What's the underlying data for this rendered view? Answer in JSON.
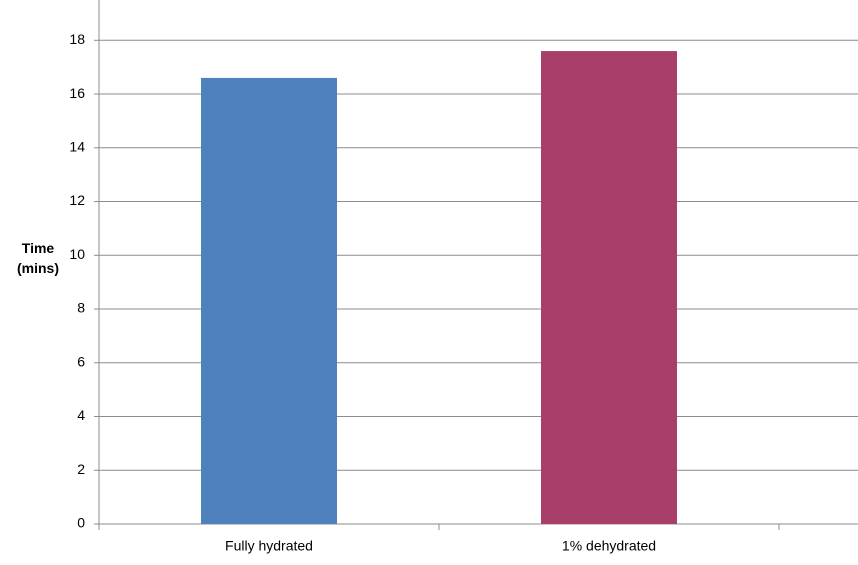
{
  "chart_data": {
    "type": "bar",
    "y_label": "Time (mins)",
    "categories": [
      "Fully hydrated",
      "1% dehydrated"
    ],
    "values": [
      16.6,
      17.6
    ],
    "colors": [
      "#4f81bd",
      "#a83e6a"
    ],
    "ylim": [
      0,
      19.5
    ],
    "yticks": [
      0,
      2,
      4,
      6,
      8,
      10,
      12,
      14,
      16,
      18
    ],
    "grid": true
  }
}
